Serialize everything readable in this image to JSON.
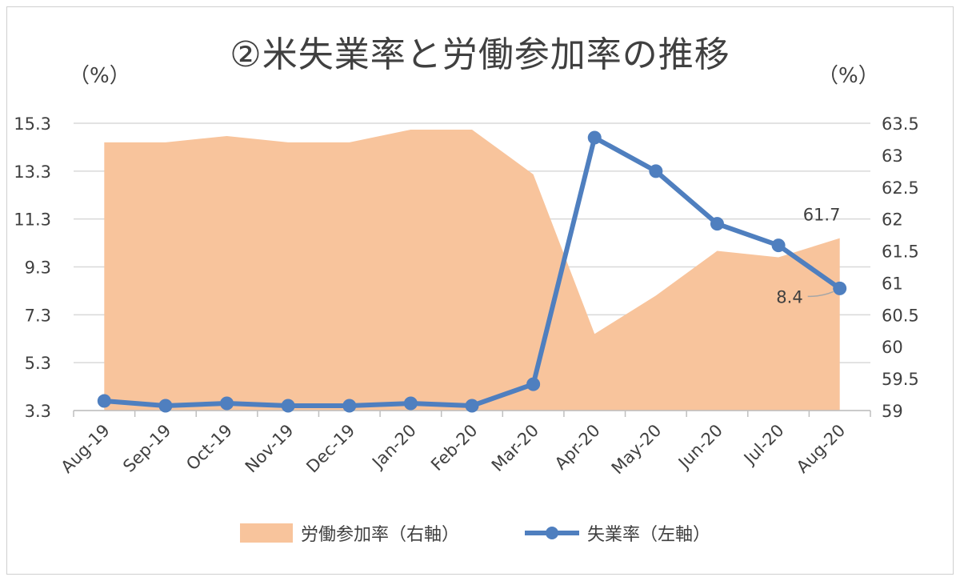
{
  "chart_data": {
    "type": "line",
    "title": "②米失業率と労働参加率の推移",
    "left_unit": "（%）",
    "right_unit": "（%）",
    "categories": [
      "Aug-19",
      "Sep-19",
      "Oct-19",
      "Nov-19",
      "Dec-19",
      "Jan-20",
      "Feb-20",
      "Mar-20",
      "Apr-20",
      "May-20",
      "Jun-20",
      "Jul-20",
      "Aug-20"
    ],
    "y_left": {
      "ticks": [
        "3.3",
        "5.3",
        "7.3",
        "9.3",
        "11.3",
        "13.3",
        "15.3"
      ],
      "min": 3.3,
      "max": 15.3
    },
    "y_right": {
      "ticks": [
        "59",
        "59.5",
        "60",
        "60.5",
        "61",
        "61.5",
        "62",
        "62.5",
        "63",
        "63.5"
      ],
      "min": 59,
      "max": 63.5
    },
    "grid": true,
    "legend_position": "bottom",
    "series": [
      {
        "name": "労働参加率（右軸）",
        "kind": "area",
        "axis": "right",
        "color": "#f8c49c",
        "values": [
          63.2,
          63.2,
          63.3,
          63.2,
          63.2,
          63.4,
          63.4,
          62.7,
          60.2,
          60.8,
          61.5,
          61.4,
          61.7
        ]
      },
      {
        "name": "失業率（左軸）",
        "kind": "line",
        "axis": "left",
        "color": "#4f7fbf",
        "values": [
          3.7,
          3.5,
          3.6,
          3.5,
          3.5,
          3.6,
          3.5,
          4.4,
          14.7,
          13.3,
          11.1,
          10.2,
          8.4
        ]
      }
    ],
    "annotations": [
      {
        "series": "労働参加率（右軸）",
        "category": "Aug-20",
        "text": "61.7"
      },
      {
        "series": "失業率（左軸）",
        "category": "Aug-20",
        "text": "8.4"
      }
    ]
  }
}
